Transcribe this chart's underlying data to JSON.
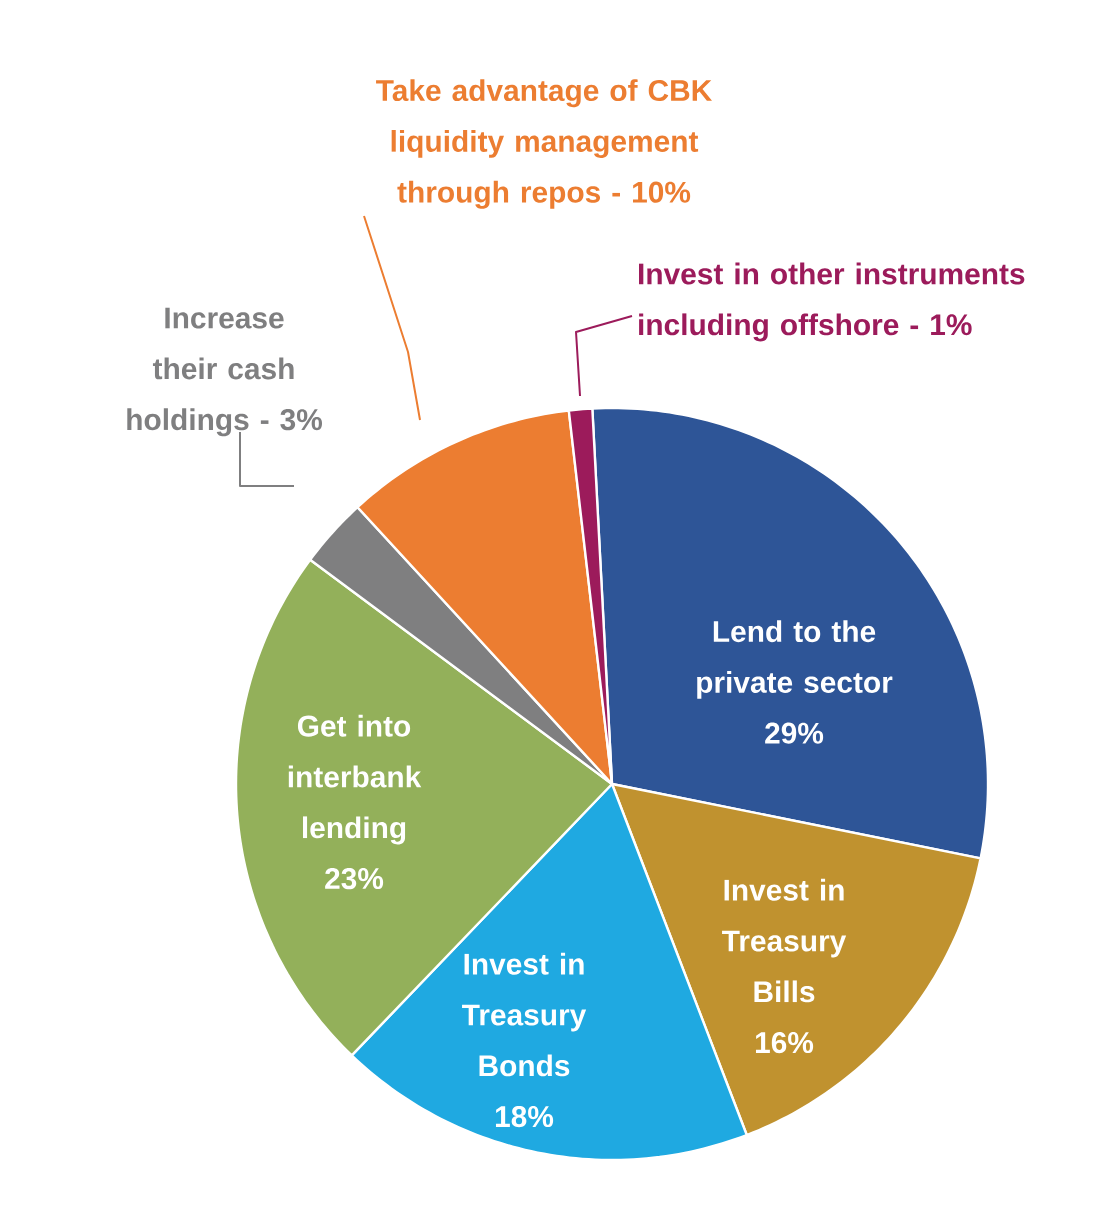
{
  "chart_data": {
    "type": "pie",
    "categories": [
      "Lend to the private sector",
      "Invest in Treasury Bills",
      "Invest in Treasury Bonds",
      "Get into interbank lending",
      "Increase their cash holdings - 3%",
      "Take advantage of CBK liquidity management through repos - 10%",
      "Invest in other instruments including offshore - 1%"
    ],
    "values": [
      29,
      16,
      18,
      23,
      3,
      10,
      1
    ],
    "colors": [
      "#2e5597",
      "#c0922f",
      "#1fa9e1",
      "#93b05a",
      "#7f7f80",
      "#ec7d31",
      "#9c1b5b"
    ],
    "value_labels": [
      "29%",
      "16%",
      "18%",
      "23%",
      null,
      null,
      null
    ]
  }
}
